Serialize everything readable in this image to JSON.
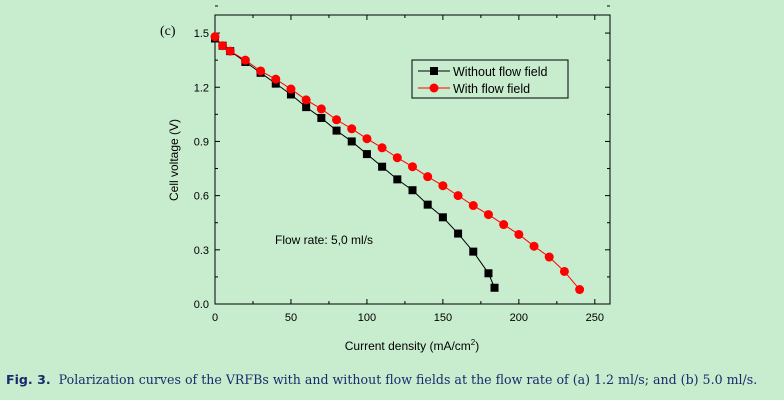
{
  "panel_label": "(c)",
  "annotation": "Flow rate: 5,0 ml/s",
  "caption": {
    "label": "Fig. 3.",
    "text": "Polarization curves of the VRFBs with and without flow fields at the flow rate of (a) 1.2 ml/s; and (b) 5.0 ml/s."
  },
  "chart_data": {
    "type": "line",
    "xlabel": "Current density (mA/cm",
    "xlabel_sup": "2",
    "xlabel_end": ")",
    "ylabel": "Cell voltage (V)",
    "xlim": [
      0,
      260
    ],
    "ylim": [
      0,
      1.6
    ],
    "xticks": [
      0,
      50,
      100,
      150,
      200,
      250
    ],
    "yticks": [
      0.0,
      0.3,
      0.6,
      0.9,
      1.2,
      1.5
    ],
    "xtick_labels": [
      "0",
      "50",
      "100",
      "150",
      "200",
      "250"
    ],
    "ytick_labels": [
      "0.0",
      "0.3",
      "0.6",
      "0.9",
      "1.2",
      "1.5"
    ],
    "grid": false,
    "legend_placement": "top-right",
    "series": [
      {
        "name": "Without flow field",
        "color": "#000000",
        "marker": "square",
        "x": [
          0,
          5,
          10,
          20,
          30,
          40,
          50,
          60,
          70,
          80,
          90,
          100,
          110,
          120,
          130,
          140,
          150,
          160,
          170,
          180,
          184
        ],
        "y": [
          1.47,
          1.43,
          1.4,
          1.34,
          1.28,
          1.22,
          1.16,
          1.09,
          1.03,
          0.96,
          0.9,
          0.83,
          0.76,
          0.69,
          0.63,
          0.55,
          0.48,
          0.39,
          0.29,
          0.17,
          0.09
        ]
      },
      {
        "name": "With flow field",
        "color": "#ff0000",
        "marker": "circle",
        "x": [
          0,
          5,
          10,
          20,
          30,
          40,
          50,
          60,
          70,
          80,
          90,
          100,
          110,
          120,
          130,
          140,
          150,
          160,
          170,
          180,
          190,
          200,
          210,
          220,
          230,
          240
        ],
        "y": [
          1.48,
          1.43,
          1.4,
          1.35,
          1.29,
          1.245,
          1.19,
          1.13,
          1.08,
          1.02,
          0.97,
          0.915,
          0.865,
          0.81,
          0.76,
          0.705,
          0.655,
          0.6,
          0.545,
          0.495,
          0.44,
          0.385,
          0.32,
          0.26,
          0.18,
          0.08
        ]
      }
    ]
  }
}
